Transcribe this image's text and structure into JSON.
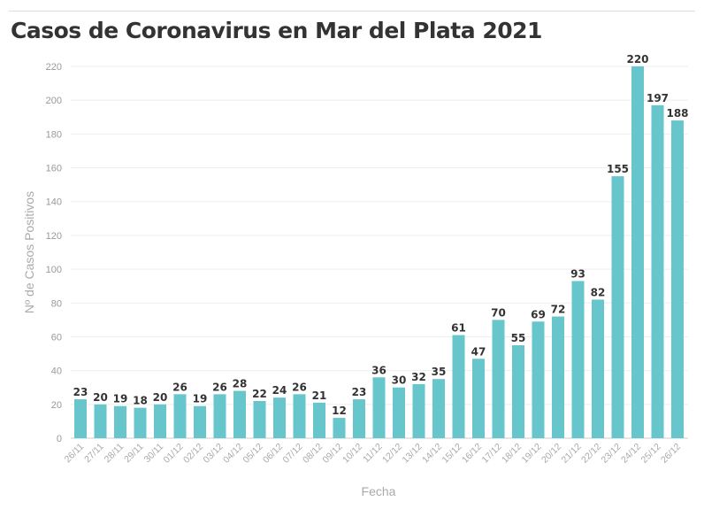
{
  "chart_data": {
    "type": "bar",
    "title": "Casos de Coronavirus en Mar del Plata 2021",
    "xlabel": "Fecha",
    "ylabel": "Nº de Casos Positivos",
    "ylim": [
      0,
      220
    ],
    "yticks": [
      0,
      20,
      40,
      60,
      80,
      100,
      120,
      140,
      160,
      180,
      200,
      220
    ],
    "grid": true,
    "bar_color": "#67c5cc",
    "categories": [
      "26/11",
      "27/11",
      "28/11",
      "29/11",
      "30/11",
      "01/12",
      "02/12",
      "03/12",
      "04/12",
      "05/12",
      "06/12",
      "07/12",
      "08/12",
      "09/12",
      "10/12",
      "11/12",
      "12/12",
      "13/12",
      "14/12",
      "15/12",
      "16/12",
      "17/12",
      "18/12",
      "19/12",
      "20/12",
      "21/12",
      "22/12",
      "23/12",
      "24/12",
      "25/12",
      "26/12"
    ],
    "values": [
      23,
      20,
      19,
      18,
      20,
      26,
      19,
      26,
      28,
      22,
      24,
      26,
      21,
      12,
      23,
      36,
      30,
      32,
      35,
      61,
      47,
      70,
      55,
      69,
      72,
      93,
      82,
      155,
      220,
      197,
      188
    ]
  }
}
